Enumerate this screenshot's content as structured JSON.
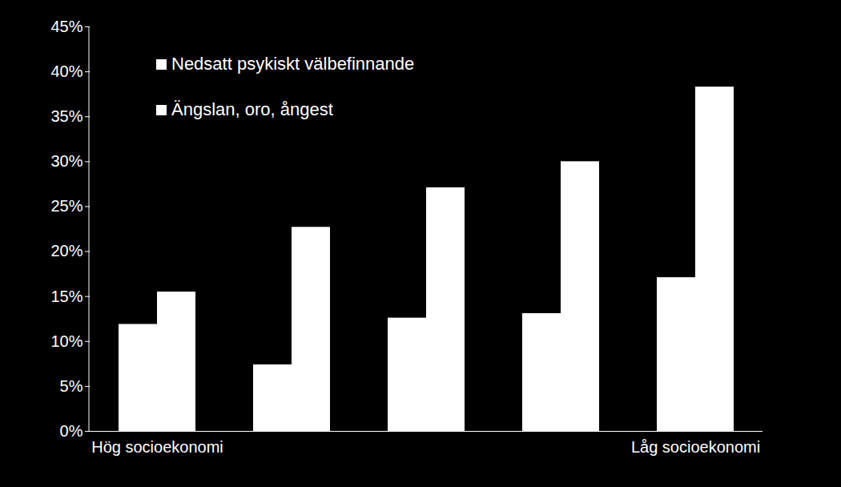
{
  "chart_data": {
    "type": "bar",
    "categories": [
      "Hög socioekonomi",
      null,
      null,
      null,
      "Låg socioekonomi"
    ],
    "series": [
      {
        "name": "Nedsatt psykiskt välbefinnande",
        "color": "#ffffff",
        "values": [
          11.9,
          7.4,
          12.6,
          13.1,
          17.1
        ]
      },
      {
        "name": "Ängslan, oro, ångest",
        "color": "#ffffff",
        "values": [
          15.5,
          22.7,
          27.1,
          30.0,
          38.3
        ]
      }
    ],
    "ylim": [
      0,
      45
    ],
    "yticks": [
      {
        "value": 0,
        "label": "0%"
      },
      {
        "value": 5,
        "label": "5%"
      },
      {
        "value": 10,
        "label": "10%"
      },
      {
        "value": 15,
        "label": "15%"
      },
      {
        "value": 20,
        "label": "20%"
      },
      {
        "value": 25,
        "label": "25%"
      },
      {
        "value": 30,
        "label": "30%"
      },
      {
        "value": 35,
        "label": "35%"
      },
      {
        "value": 40,
        "label": "40%"
      },
      {
        "value": 45,
        "label": "45%"
      }
    ],
    "grid": false,
    "legend": "upper left"
  }
}
